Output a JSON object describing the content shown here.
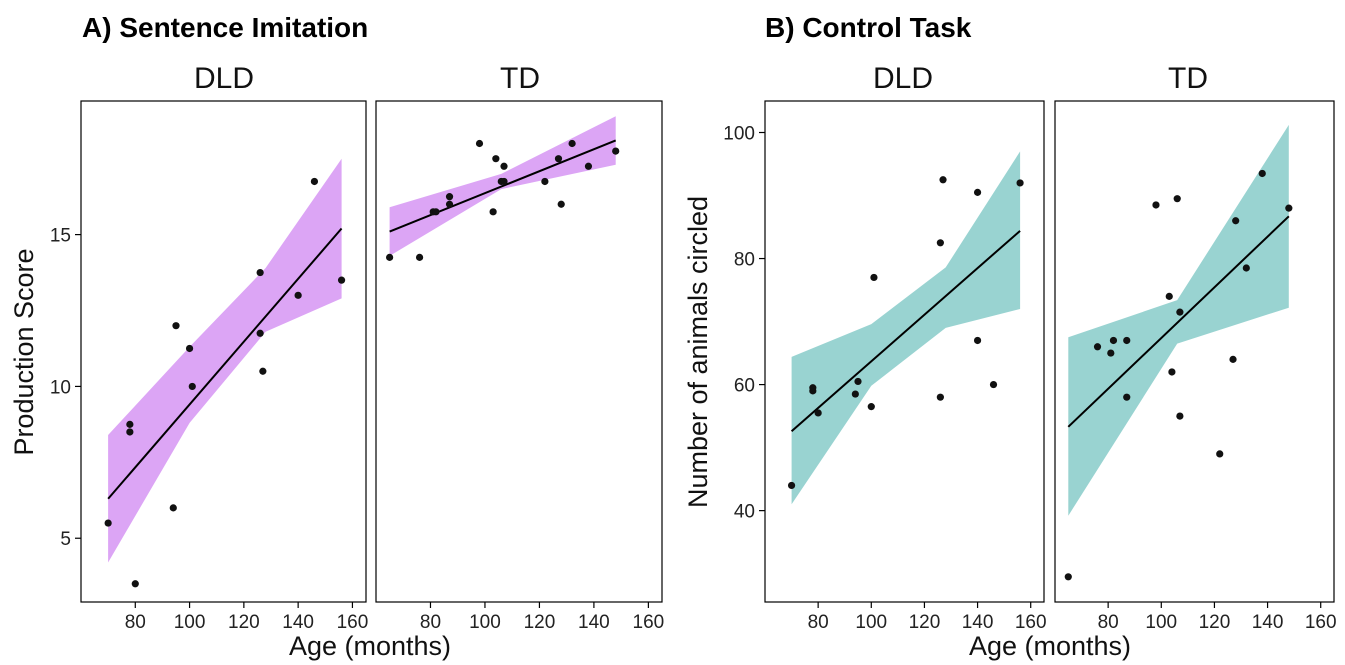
{
  "figure": {
    "shared_xlabel": "Age (months)"
  },
  "chart_data": [
    {
      "id": "A",
      "type": "scatter",
      "title": "A) Sentence Imitation",
      "ylabel": "Production Score",
      "xlabel": "Age (months)",
      "band_color": "#dca5f5",
      "point_color": "#111111",
      "line_color": "#000000",
      "ylim": [
        2.9,
        19.4
      ],
      "yticks": [
        5,
        10,
        15
      ],
      "xlim": [
        60,
        165
      ],
      "xticks": [
        80,
        100,
        120,
        140,
        160
      ],
      "panels": [
        {
          "facet": "DLD",
          "points": [
            [
              70,
              5.5
            ],
            [
              78,
              8.5
            ],
            [
              78,
              8.75
            ],
            [
              80,
              3.5
            ],
            [
              94,
              6
            ],
            [
              95,
              12
            ],
            [
              100,
              11.25
            ],
            [
              101,
              10
            ],
            [
              126,
              13.75
            ],
            [
              126,
              11.75
            ],
            [
              127,
              10.5
            ],
            [
              140,
              13
            ],
            [
              146,
              16.75
            ],
            [
              156,
              13.5
            ]
          ],
          "fit": {
            "x": [
              70,
              156
            ],
            "y": [
              6.3,
              15.2
            ]
          },
          "band": {
            "x": [
              70,
              100,
              128,
              156
            ],
            "lower": [
              4.2,
              8.8,
              11.8,
              12.9
            ],
            "upper": [
              8.4,
              11.3,
              13.9,
              17.5
            ]
          }
        },
        {
          "facet": "TD",
          "points": [
            [
              65,
              14.25
            ],
            [
              76,
              14.25
            ],
            [
              81,
              15.75
            ],
            [
              82,
              15.75
            ],
            [
              87,
              16
            ],
            [
              87,
              16.25
            ],
            [
              98,
              18
            ],
            [
              103,
              15.75
            ],
            [
              104,
              17.5
            ],
            [
              106,
              16.75
            ],
            [
              107,
              16.75
            ],
            [
              107,
              17.25
            ],
            [
              122,
              16.75
            ],
            [
              127,
              17.5
            ],
            [
              128,
              16
            ],
            [
              132,
              18
            ],
            [
              138,
              17.25
            ],
            [
              148,
              17.75
            ]
          ],
          "fit": {
            "x": [
              65,
              148
            ],
            "y": [
              15.1,
              18.1
            ]
          },
          "band": {
            "x": [
              65,
              106,
              148
            ],
            "lower": [
              14.3,
              16.5,
              17.3
            ],
            "upper": [
              15.9,
              17.0,
              18.9
            ]
          }
        }
      ]
    },
    {
      "id": "B",
      "type": "scatter",
      "title": "B) Control Task",
      "ylabel": "Number of animals circled",
      "xlabel": "Age (months)",
      "band_color": "#99d3d1",
      "point_color": "#111111",
      "line_color": "#000000",
      "ylim": [
        25.5,
        105
      ],
      "yticks": [
        40,
        60,
        80,
        100
      ],
      "xlim": [
        60,
        165
      ],
      "xticks": [
        80,
        100,
        120,
        140,
        160
      ],
      "panels": [
        {
          "facet": "DLD",
          "points": [
            [
              70,
              44
            ],
            [
              78,
              59
            ],
            [
              78,
              59.5
            ],
            [
              80,
              55.5
            ],
            [
              94,
              58.5
            ],
            [
              95,
              60.5
            ],
            [
              100,
              56.5
            ],
            [
              101,
              77
            ],
            [
              126,
              82.5
            ],
            [
              126,
              58
            ],
            [
              127,
              92.5
            ],
            [
              140,
              90.5
            ],
            [
              140,
              67
            ],
            [
              146,
              60
            ],
            [
              156,
              92
            ]
          ],
          "fit": {
            "x": [
              70,
              156
            ],
            "y": [
              52.6,
              84.4
            ]
          },
          "band": {
            "x": [
              70,
              100,
              128,
              156
            ],
            "lower": [
              41,
              59.8,
              69,
              72
            ],
            "upper": [
              64.4,
              69.6,
              78.6,
              97
            ]
          }
        },
        {
          "facet": "TD",
          "points": [
            [
              65,
              29.5
            ],
            [
              76,
              66
            ],
            [
              81,
              65
            ],
            [
              82,
              67
            ],
            [
              87,
              58
            ],
            [
              87,
              67
            ],
            [
              98,
              88.5
            ],
            [
              103,
              74
            ],
            [
              104,
              62
            ],
            [
              106,
              89.5
            ],
            [
              107,
              71.5
            ],
            [
              107,
              55
            ],
            [
              122,
              49
            ],
            [
              127,
              64
            ],
            [
              128,
              86
            ],
            [
              132,
              78.5
            ],
            [
              138,
              93.5
            ],
            [
              148,
              88
            ]
          ],
          "fit": {
            "x": [
              65,
              148
            ],
            "y": [
              53.3,
              86.7
            ]
          },
          "band": {
            "x": [
              65,
              106,
              148
            ],
            "lower": [
              39.2,
              66.5,
              72.2
            ],
            "upper": [
              67.5,
              73.4,
              101.2
            ]
          }
        }
      ]
    }
  ]
}
